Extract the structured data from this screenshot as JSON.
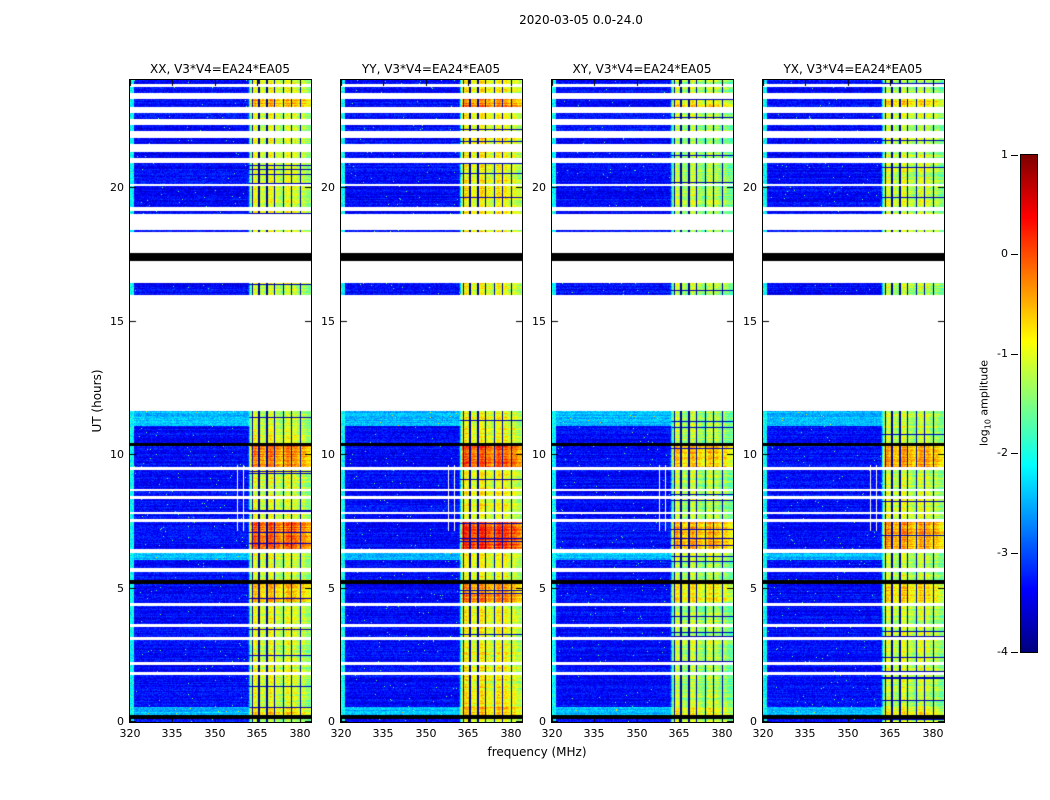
{
  "figure": {
    "title": "2020-03-05 0.0-24.0",
    "xlabel": "frequency (MHz)",
    "ylabel": "UT (hours)",
    "colorbar_label_prefix": "log",
    "colorbar_label_sub": "10",
    "colorbar_label_suffix": " amplitude"
  },
  "chart_data": {
    "type": "heatmap",
    "description": "Four dynamic-spectrum (waterfall) panels of correlation amplitude vs frequency and time, jet colormap, log10 amplitude from -4 to 1. Quiet blue background near -3.4, bright emission band ~362-384 MHz, many horizontal data gaps (white) and RFI dropouts (black), large observing gap between ~11.6 and ~16.0 UT.",
    "panels": [
      {
        "title": "XX, V3*V4=EA24*EA05",
        "seed": 1,
        "band_gain": 1.0,
        "band_offset": 0.0
      },
      {
        "title": "YY, V3*V4=EA24*EA05",
        "seed": 2,
        "band_gain": 1.1,
        "band_offset": 0.15
      },
      {
        "title": "XY, V3*V4=EA24*EA05",
        "seed": 3,
        "band_gain": 0.8,
        "band_offset": -0.2
      },
      {
        "title": "YX, V3*V4=EA24*EA05",
        "seed": 4,
        "band_gain": 0.85,
        "band_offset": -0.1
      }
    ],
    "x_axis": {
      "label": "frequency (MHz)",
      "range": [
        320,
        384
      ],
      "ticks": [
        320,
        335,
        350,
        365,
        380
      ]
    },
    "y_axis": {
      "label": "UT (hours)",
      "range": [
        0,
        24
      ],
      "ticks": [
        0,
        5,
        10,
        15,
        20
      ]
    },
    "colorbar": {
      "label": "log10 amplitude",
      "range": [
        -4,
        1
      ],
      "ticks": [
        1,
        0,
        -1,
        -2,
        -3,
        -4
      ],
      "colormap": "jet"
    },
    "background_level": -3.35,
    "left_edge_column": {
      "freq_max": 321.3,
      "level": -2.1
    },
    "band": {
      "freq_range": [
        361.8,
        384
      ],
      "base_level": -1.45,
      "peaks": [
        [
          364.2,
          0.55
        ],
        [
          366.8,
          0.35
        ],
        [
          369.8,
          0.6
        ],
        [
          372.3,
          0.35
        ],
        [
          375.8,
          0.55
        ],
        [
          378.3,
          0.45
        ],
        [
          381.2,
          0.3
        ]
      ],
      "rfi_channels": [
        363.3,
        365.6,
        368.4,
        371.1,
        374.2,
        377.2,
        380.3
      ]
    },
    "faint_vertical_lines": {
      "freqs": [
        357.9,
        360.2
      ],
      "time_range": [
        7.15,
        9.6
      ]
    },
    "hot_intervals": [
      [
        0.28,
        0.55,
        0.3
      ],
      [
        4.5,
        5.15,
        0.5
      ],
      [
        6.45,
        7.48,
        0.9
      ],
      [
        9.55,
        10.3,
        0.8
      ],
      [
        23.0,
        23.3,
        0.5
      ]
    ],
    "time_segments": [
      [
        0.0,
        0.1,
        "d"
      ],
      [
        0.1,
        0.28,
        "k"
      ],
      [
        0.28,
        0.55,
        "c"
      ],
      [
        0.55,
        1.75,
        "d"
      ],
      [
        1.75,
        1.88,
        "w"
      ],
      [
        1.88,
        2.12,
        "d"
      ],
      [
        2.12,
        2.25,
        "w"
      ],
      [
        2.25,
        3.05,
        "d"
      ],
      [
        3.05,
        3.18,
        "w"
      ],
      [
        3.18,
        3.55,
        "d"
      ],
      [
        3.55,
        3.68,
        "w"
      ],
      [
        3.68,
        4.33,
        "d"
      ],
      [
        4.33,
        4.46,
        "w"
      ],
      [
        4.46,
        5.15,
        "d"
      ],
      [
        5.15,
        5.32,
        "k"
      ],
      [
        5.32,
        5.62,
        "d"
      ],
      [
        5.62,
        5.75,
        "w"
      ],
      [
        5.75,
        6.05,
        "d"
      ],
      [
        6.05,
        6.32,
        "c"
      ],
      [
        6.32,
        6.45,
        "w"
      ],
      [
        6.45,
        7.48,
        "d"
      ],
      [
        7.48,
        7.6,
        "w"
      ],
      [
        7.6,
        7.78,
        "d"
      ],
      [
        7.78,
        7.86,
        "w"
      ],
      [
        7.86,
        8.32,
        "d"
      ],
      [
        8.32,
        8.44,
        "w"
      ],
      [
        8.44,
        8.62,
        "d"
      ],
      [
        8.62,
        8.7,
        "w"
      ],
      [
        8.7,
        9.42,
        "d"
      ],
      [
        9.42,
        9.55,
        "w"
      ],
      [
        9.55,
        10.3,
        "d"
      ],
      [
        10.3,
        10.42,
        "k"
      ],
      [
        10.42,
        11.05,
        "d"
      ],
      [
        11.05,
        11.62,
        "c"
      ],
      [
        11.62,
        15.95,
        "w"
      ],
      [
        15.95,
        16.42,
        "d"
      ],
      [
        16.42,
        17.22,
        "w"
      ],
      [
        17.22,
        17.52,
        "k"
      ],
      [
        17.52,
        18.3,
        "w"
      ],
      [
        18.3,
        18.4,
        "d"
      ],
      [
        18.4,
        19.0,
        "w"
      ],
      [
        19.0,
        19.1,
        "d"
      ],
      [
        19.1,
        19.25,
        "w"
      ],
      [
        19.25,
        20.05,
        "d"
      ],
      [
        20.05,
        20.12,
        "w"
      ],
      [
        20.12,
        20.88,
        "d"
      ],
      [
        20.88,
        21.1,
        "w"
      ],
      [
        21.1,
        21.32,
        "d"
      ],
      [
        21.32,
        21.6,
        "w"
      ],
      [
        21.6,
        21.82,
        "d"
      ],
      [
        21.82,
        22.1,
        "w"
      ],
      [
        22.1,
        22.32,
        "d"
      ],
      [
        22.32,
        22.55,
        "w"
      ],
      [
        22.55,
        22.75,
        "d"
      ],
      [
        22.75,
        23.0,
        "w"
      ],
      [
        23.0,
        23.3,
        "d"
      ],
      [
        23.3,
        23.52,
        "w"
      ],
      [
        23.52,
        23.72,
        "d"
      ],
      [
        23.72,
        23.85,
        "w"
      ],
      [
        23.85,
        24.0,
        "d"
      ]
    ]
  }
}
